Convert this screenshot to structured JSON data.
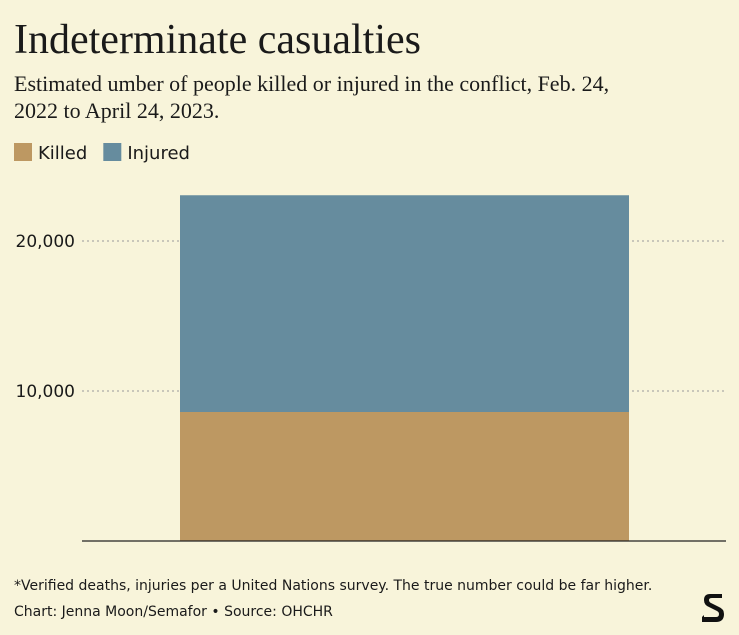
{
  "chart_data": {
    "type": "stacked-bar",
    "title": "Indeterminate casualties",
    "subtitle": "Estimated umber of people killed or injured in the conflict, Feb. 24, 2022 to April 24, 2023.",
    "categories": [
      null
    ],
    "series": [
      {
        "name": "Killed",
        "color": "#bd9862",
        "values": [
          8600
        ]
      },
      {
        "name": "Injured",
        "color": "#668c9e",
        "values": [
          14450
        ]
      }
    ],
    "ylim": [
      0,
      23100
    ],
    "yticks": [
      {
        "value": 10000,
        "label": "10,000"
      },
      {
        "value": 20000,
        "label": "20,000"
      }
    ],
    "grid": true,
    "legend": "top-left",
    "note": "*Verified deaths, injuries per a United Nations survey. The true number could be far higher.",
    "credit": "Chart: Jenna Moon/Semafor • Source: OHCHR"
  }
}
